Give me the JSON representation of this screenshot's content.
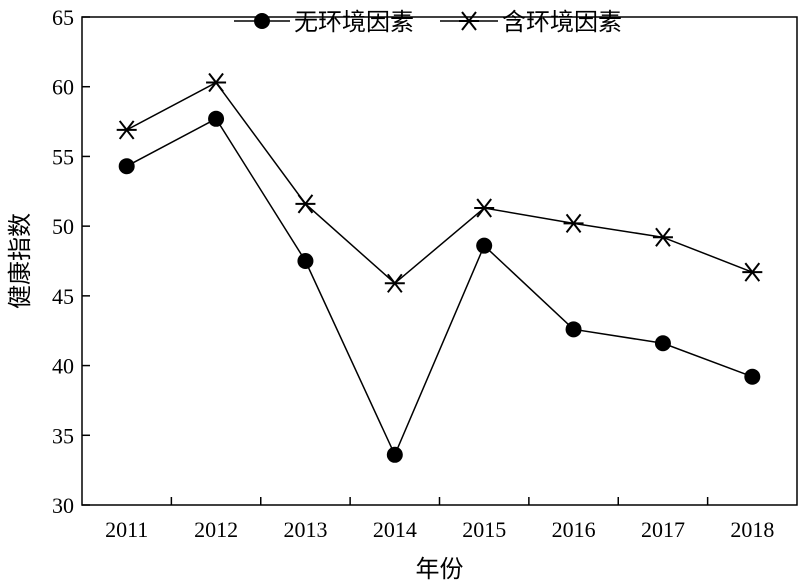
{
  "chart_data": {
    "type": "line",
    "xlabel": "年份",
    "ylabel": "健康指数",
    "categories": [
      "2011",
      "2012",
      "2013",
      "2014",
      "2015",
      "2016",
      "2017",
      "2018"
    ],
    "ylim": [
      30,
      65
    ],
    "yticks": [
      30,
      35,
      40,
      45,
      50,
      55,
      60,
      65
    ],
    "grid": false,
    "legend_position": "top",
    "series": [
      {
        "name": "无环境因素",
        "marker": "filled-circle",
        "color": "#000000",
        "values": [
          54.3,
          57.7,
          47.5,
          33.6,
          48.6,
          42.6,
          41.6,
          39.2
        ]
      },
      {
        "name": "含环境因素",
        "marker": "asterisk",
        "color": "#000000",
        "values": [
          56.9,
          60.3,
          51.6,
          45.9,
          51.3,
          50.2,
          49.2,
          46.7
        ]
      }
    ]
  }
}
